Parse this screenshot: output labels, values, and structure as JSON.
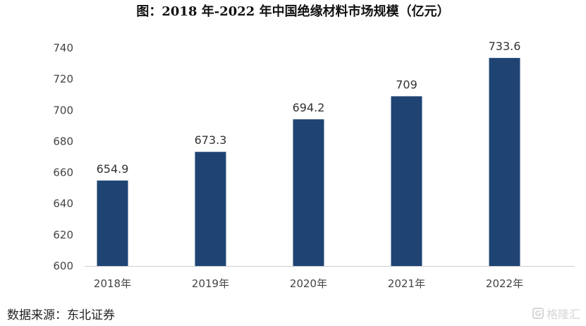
{
  "title": "图：2018 年-2022 年中国绝缘材料市场规模（亿元）",
  "source": "数据来源：东北证券",
  "watermark": {
    "label": "格隆汇",
    "icon": "G"
  },
  "chart_data": {
    "type": "bar",
    "title": "图：2018 年-2022 年中国绝缘材料市场规模（亿元）",
    "categories": [
      "2018年",
      "2019年",
      "2020年",
      "2021年",
      "2022年"
    ],
    "values": [
      654.9,
      673.3,
      694.2,
      709,
      733.6
    ],
    "data_labels": [
      "654.9",
      "673.3",
      "694.2",
      "709",
      "733.6"
    ],
    "ylim": [
      600,
      740
    ],
    "yticks": [
      600,
      620,
      640,
      660,
      680,
      700,
      720,
      740
    ],
    "bar_color": "#1f4474",
    "grid": false,
    "legend": "none"
  }
}
